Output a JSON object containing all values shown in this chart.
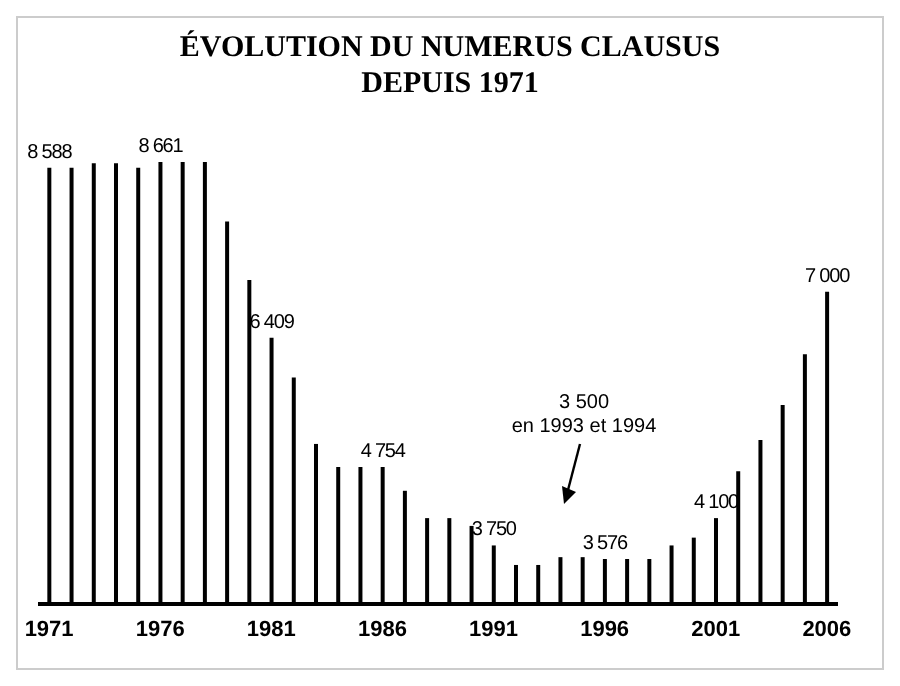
{
  "chart_data": {
    "type": "bar",
    "title": "ÉVOLUTION DU NUMERUS CLAUSUS DEPUIS 1971",
    "categories": [
      "1971",
      null,
      null,
      null,
      null,
      "1976",
      null,
      null,
      null,
      null,
      "1981",
      null,
      null,
      null,
      null,
      "1986",
      null,
      null,
      null,
      null,
      "1991",
      null,
      null,
      null,
      null,
      "1996",
      null,
      null,
      null,
      null,
      "2001",
      null,
      null,
      null,
      null,
      "2006"
    ],
    "values": [
      8588,
      8588,
      8646,
      8646,
      8588,
      8661,
      8661,
      8661,
      7900,
      7150,
      6409,
      5900,
      5050,
      4754,
      4754,
      4754,
      4450,
      4100,
      4100,
      4000,
      3750,
      3500,
      3500,
      3600,
      3600,
      3576,
      3576,
      3576,
      3750,
      3850,
      4100,
      4700,
      5100,
      5550,
      6200,
      7000
    ],
    "value_labels": [
      "8 588",
      null,
      null,
      null,
      null,
      "8 661",
      null,
      null,
      null,
      null,
      "6 409",
      null,
      null,
      null,
      null,
      "4 754",
      null,
      null,
      null,
      null,
      "3 750",
      null,
      null,
      null,
      null,
      "3 576",
      null,
      null,
      null,
      null,
      "4 100",
      null,
      null,
      null,
      null,
      "7 000"
    ],
    "color": "#000000",
    "ylim": [
      3000,
      8661
    ],
    "tick_labels": "x",
    "annotations": [
      "3 500\nen 1993 et 1994"
    ]
  }
}
